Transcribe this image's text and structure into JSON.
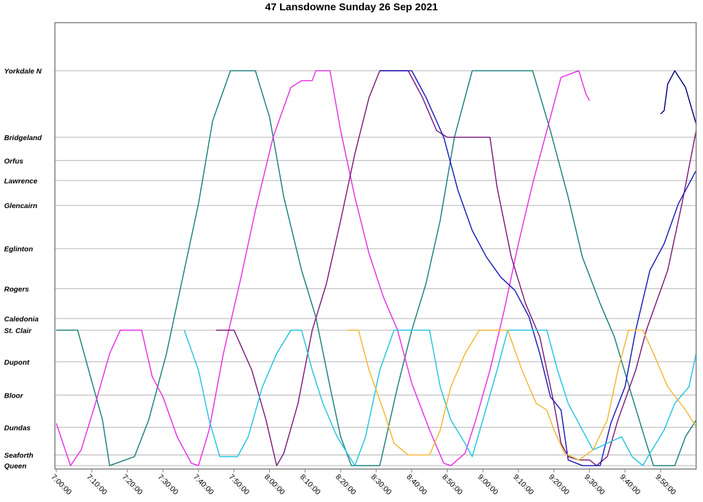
{
  "chart_data": {
    "type": "line",
    "title": "47 Lansdowne Sunday 26 Sep 2021",
    "xlabel": "",
    "ylabel": "",
    "x_range": [
      "7:00:00",
      "10:00:00"
    ],
    "x_ticks": [
      "7:00:00",
      "7:10:00",
      "7:20:00",
      "7:30:00",
      "7:40:00",
      "7:50:00",
      "8:00:00",
      "8:10:00",
      "8:20:00",
      "8:30:00",
      "8:40:00",
      "8:50:00",
      "9:00:00",
      "9:10:00",
      "9:20:00",
      "9:30:00",
      "9:40:00",
      "9:50:00"
    ],
    "stops": [
      {
        "name": "Yorkdale N",
        "pos": 1.0
      },
      {
        "name": "Bridgeland",
        "pos": 0.8
      },
      {
        "name": "Orfus",
        "pos": 0.73
      },
      {
        "name": "Lawrence",
        "pos": 0.67
      },
      {
        "name": "Glencairn",
        "pos": 0.595
      },
      {
        "name": "Eglinton",
        "pos": 0.465
      },
      {
        "name": "Rogers",
        "pos": 0.345
      },
      {
        "name": "Caledonia",
        "pos": 0.255
      },
      {
        "name": "St. Clair",
        "pos": 0.22
      },
      {
        "name": "Dupont",
        "pos": 0.125
      },
      {
        "name": "Bloor",
        "pos": 0.025
      },
      {
        "name": "Dundas",
        "pos": -0.072
      },
      {
        "name": "Seaforth",
        "pos": -0.155
      },
      {
        "name": "Queen",
        "pos": -0.187
      }
    ],
    "grid": true,
    "series": [
      {
        "color": "#1a7f7a",
        "points": [
          [
            "7:00",
            0.22
          ],
          [
            "7:06",
            0.22
          ],
          [
            "7:13",
            -0.05
          ],
          [
            "7:15",
            -0.187
          ],
          [
            "7:22",
            -0.16
          ],
          [
            "7:26",
            -0.05
          ],
          [
            "7:31",
            0.15
          ],
          [
            "7:35",
            0.35
          ],
          [
            "7:40",
            0.6
          ],
          [
            "7:44",
            0.85
          ],
          [
            "7:49",
            1.0
          ],
          [
            "7:56",
            1.0
          ],
          [
            "8:00",
            0.86
          ],
          [
            "8:04",
            0.62
          ],
          [
            "8:09",
            0.4
          ],
          [
            "8:13",
            0.26
          ],
          [
            "8:17",
            0.05
          ],
          [
            "8:20",
            -0.1
          ],
          [
            "8:23",
            -0.187
          ],
          [
            "8:31",
            -0.187
          ],
          [
            "8:36",
            0.05
          ],
          [
            "8:40",
            0.22
          ],
          [
            "8:44",
            0.36
          ],
          [
            "8:48",
            0.55
          ],
          [
            "8:52",
            0.8
          ],
          [
            "8:57",
            1.0
          ],
          [
            "9:14",
            1.0
          ],
          [
            "9:19",
            0.82
          ],
          [
            "9:24",
            0.62
          ],
          [
            "9:28",
            0.44
          ],
          [
            "9:33",
            0.3
          ],
          [
            "9:37",
            0.2
          ],
          [
            "9:42",
            0.02
          ],
          [
            "9:46",
            -0.12
          ],
          [
            "9:48",
            -0.187
          ],
          [
            "9:54",
            -0.187
          ],
          [
            "9:57",
            -0.1
          ],
          [
            "10:00",
            -0.05
          ]
        ]
      },
      {
        "color": "#e62ee6",
        "points": [
          [
            "7:00",
            -0.06
          ],
          [
            "7:04",
            -0.187
          ],
          [
            "7:07",
            -0.14
          ],
          [
            "7:11",
            0.0
          ],
          [
            "7:15",
            0.15
          ],
          [
            "7:18",
            0.22
          ],
          [
            "7:24",
            0.22
          ],
          [
            "7:27",
            0.08
          ],
          [
            "7:30",
            0.02
          ],
          [
            "7:34",
            -0.1
          ],
          [
            "7:38",
            -0.18
          ],
          [
            "7:40",
            -0.187
          ],
          [
            "7:43",
            -0.08
          ],
          [
            "7:47",
            0.15
          ],
          [
            "7:52",
            0.38
          ],
          [
            "7:56",
            0.58
          ],
          [
            "8:01",
            0.8
          ],
          [
            "8:06",
            0.95
          ],
          [
            "8:09",
            0.97
          ],
          [
            "8:12",
            0.97
          ],
          [
            "8:13",
            1.0
          ],
          [
            "8:17",
            1.0
          ],
          [
            "8:20",
            0.82
          ],
          [
            "8:24",
            0.62
          ],
          [
            "8:28",
            0.45
          ],
          [
            "8:32",
            0.32
          ],
          [
            "8:36",
            0.22
          ],
          [
            "8:40",
            0.06
          ],
          [
            "8:45",
            -0.08
          ],
          [
            "8:49",
            -0.18
          ],
          [
            "8:51",
            -0.187
          ],
          [
            "8:55",
            -0.15
          ],
          [
            "8:58",
            -0.05
          ],
          [
            "9:02",
            0.1
          ],
          [
            "9:06",
            0.28
          ],
          [
            "9:10",
            0.48
          ],
          [
            "9:14",
            0.66
          ],
          [
            "9:18",
            0.82
          ],
          [
            "9:22",
            0.98
          ],
          [
            "9:27",
            1.0
          ],
          [
            "9:29",
            0.93
          ],
          [
            "9:30",
            0.91
          ]
        ]
      },
      {
        "color": "#7a1a7a",
        "points": [
          [
            "7:45",
            0.22
          ],
          [
            "7:50",
            0.22
          ],
          [
            "7:55",
            0.1
          ],
          [
            "7:59",
            -0.05
          ],
          [
            "8:02",
            -0.187
          ],
          [
            "8:04",
            -0.15
          ],
          [
            "8:08",
            0.0
          ],
          [
            "8:12",
            0.22
          ],
          [
            "8:16",
            0.36
          ],
          [
            "8:20",
            0.55
          ],
          [
            "8:24",
            0.75
          ],
          [
            "8:28",
            0.92
          ],
          [
            "8:31",
            1.0
          ],
          [
            "8:39",
            1.0
          ],
          [
            "8:43",
            0.92
          ],
          [
            "8:47",
            0.82
          ],
          [
            "8:50",
            0.8
          ],
          [
            "9:02",
            0.8
          ],
          [
            "9:04",
            0.65
          ],
          [
            "9:08",
            0.44
          ],
          [
            "9:12",
            0.3
          ],
          [
            "9:16",
            0.2
          ],
          [
            "9:20",
            0.0
          ],
          [
            "9:22",
            -0.12
          ],
          [
            "9:24",
            -0.16
          ],
          [
            "9:27",
            -0.17
          ],
          [
            "9:30",
            -0.17
          ],
          [
            "9:32",
            -0.187
          ],
          [
            "9:35",
            -0.16
          ],
          [
            "9:38",
            -0.05
          ],
          [
            "9:43",
            0.1
          ],
          [
            "9:46",
            0.22
          ],
          [
            "9:52",
            0.4
          ],
          [
            "9:56",
            0.6
          ],
          [
            "10:00",
            0.82
          ]
        ]
      },
      {
        "color": "#1a1ab8",
        "points": [
          [
            "8:31",
            1.0
          ],
          [
            "8:40",
            1.0
          ],
          [
            "8:44",
            0.92
          ],
          [
            "8:49",
            0.8
          ],
          [
            "8:53",
            0.64
          ],
          [
            "8:57",
            0.52
          ],
          [
            "9:01",
            0.44
          ],
          [
            "9:05",
            0.38
          ],
          [
            "9:09",
            0.34
          ],
          [
            "9:13",
            0.26
          ],
          [
            "9:16",
            0.15
          ],
          [
            "9:19",
            0.02
          ],
          [
            "9:22",
            -0.02
          ],
          [
            "9:24",
            -0.17
          ],
          [
            "9:28",
            -0.187
          ],
          [
            "9:33",
            -0.187
          ],
          [
            "9:36",
            -0.06
          ],
          [
            "9:40",
            0.05
          ],
          [
            "9:43",
            0.22
          ],
          [
            "9:47",
            0.4
          ],
          [
            "9:51",
            0.48
          ],
          [
            "9:55",
            0.6
          ],
          [
            "10:00",
            0.7
          ]
        ]
      },
      {
        "color": "#000080",
        "points": [
          [
            "9:50",
            0.87
          ],
          [
            "9:51",
            0.88
          ],
          [
            "9:52",
            0.96
          ],
          [
            "9:54",
            1.0
          ],
          [
            "9:57",
            0.95
          ],
          [
            "10:00",
            0.84
          ]
        ]
      },
      {
        "color": "#22c4dd",
        "points": [
          [
            "7:36",
            0.22
          ],
          [
            "7:40",
            0.1
          ],
          [
            "7:43",
            -0.05
          ],
          [
            "7:46",
            -0.16
          ],
          [
            "7:51",
            -0.16
          ],
          [
            "7:54",
            -0.1
          ],
          [
            "7:58",
            0.05
          ],
          [
            "8:02",
            0.15
          ],
          [
            "8:06",
            0.22
          ],
          [
            "8:09",
            0.22
          ],
          [
            "8:12",
            0.1
          ],
          [
            "8:15",
            0.0
          ],
          [
            "8:19",
            -0.1
          ],
          [
            "8:24",
            -0.187
          ],
          [
            "8:27",
            -0.1
          ],
          [
            "8:31",
            0.1
          ],
          [
            "8:35",
            0.22
          ],
          [
            "8:45",
            0.22
          ],
          [
            "8:48",
            0.05
          ],
          [
            "8:51",
            -0.05
          ],
          [
            "8:55",
            -0.12
          ],
          [
            "8:57",
            -0.16
          ],
          [
            "9:00",
            -0.05
          ],
          [
            "9:04",
            0.1
          ],
          [
            "9:07",
            0.22
          ],
          [
            "9:18",
            0.22
          ],
          [
            "9:21",
            0.1
          ],
          [
            "9:24",
            0.0
          ],
          [
            "9:28",
            -0.08
          ],
          [
            "9:31",
            -0.14
          ],
          [
            "9:35",
            -0.12
          ],
          [
            "9:39",
            -0.1
          ],
          [
            "9:42",
            -0.16
          ],
          [
            "9:45",
            -0.187
          ],
          [
            "9:47",
            -0.15
          ],
          [
            "9:51",
            -0.08
          ],
          [
            "9:54",
            0.0
          ],
          [
            "9:58",
            0.05
          ],
          [
            "10:00",
            0.15
          ]
        ]
      },
      {
        "color": "#f2b632",
        "points": [
          [
            "8:22",
            0.22
          ],
          [
            "8:25",
            0.22
          ],
          [
            "8:28",
            0.1
          ],
          [
            "8:32",
            -0.02
          ],
          [
            "8:35",
            -0.12
          ],
          [
            "8:39",
            -0.155
          ],
          [
            "8:45",
            -0.155
          ],
          [
            "8:48",
            -0.08
          ],
          [
            "8:51",
            0.05
          ],
          [
            "8:55",
            0.15
          ],
          [
            "8:59",
            0.22
          ],
          [
            "9:07",
            0.22
          ],
          [
            "9:11",
            0.1
          ],
          [
            "9:15",
            0.0
          ],
          [
            "9:18",
            -0.02
          ],
          [
            "9:20",
            -0.08
          ],
          [
            "9:23",
            -0.15
          ],
          [
            "9:27",
            -0.17
          ],
          [
            "9:31",
            -0.14
          ],
          [
            "9:35",
            -0.05
          ],
          [
            "9:38",
            0.1
          ],
          [
            "9:41",
            0.22
          ],
          [
            "9:45",
            0.22
          ],
          [
            "9:48",
            0.15
          ],
          [
            "9:52",
            0.05
          ],
          [
            "9:57",
            -0.02
          ],
          [
            "10:00",
            -0.07
          ]
        ]
      }
    ]
  }
}
